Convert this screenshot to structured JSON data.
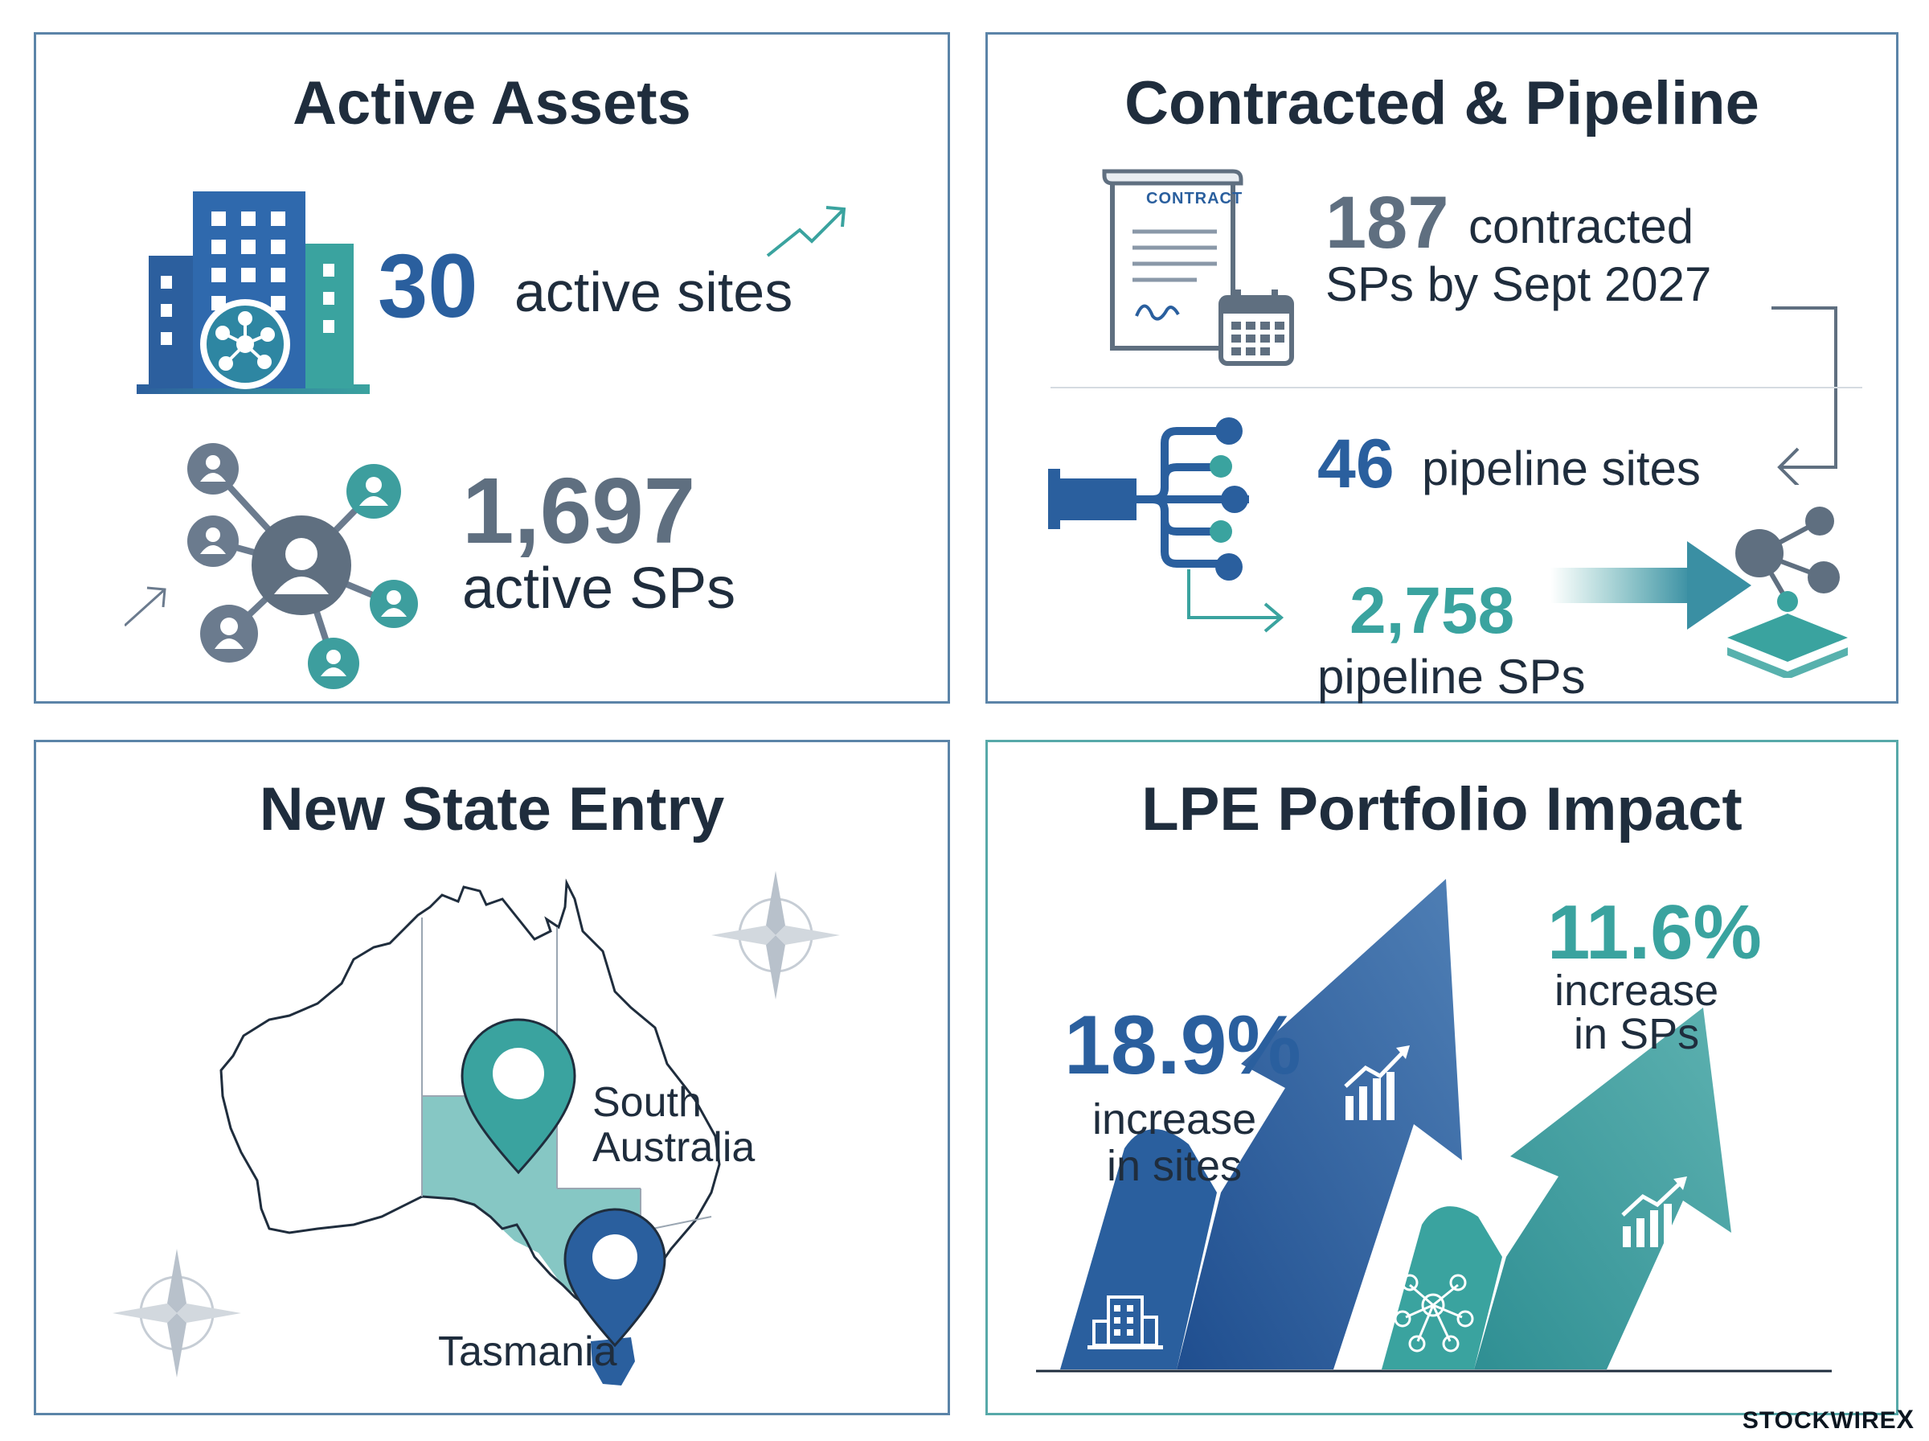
{
  "colors": {
    "navy": "#1f2d3d",
    "blue": "#2a5f9e",
    "teal": "#3aa39f",
    "slate": "#5f6f80",
    "border": "#5b84a8"
  },
  "active_assets": {
    "title": "Active Assets",
    "sites_number": "30",
    "sites_label": "active sites",
    "sps_number": "1,697",
    "sps_label": "active SPs",
    "icons": [
      "office-building-icon",
      "network-hub-icon",
      "trend-arrow-icon",
      "people-network-icon"
    ]
  },
  "contracted": {
    "title": "Contracted & Pipeline",
    "contract_icon_label": "CONTRACT",
    "contracted_number": "187",
    "contracted_label": "contracted",
    "contracted_line2": "SPs by Sept 2027",
    "pipeline_sites_number": "46",
    "pipeline_sites_label": "pipeline sites",
    "pipeline_sps_number": "2,758",
    "pipeline_sps_label": "pipeline SPs",
    "icons": [
      "contract-document-icon",
      "calendar-icon",
      "pipeline-branch-icon",
      "network-stack-icon"
    ]
  },
  "state_entry": {
    "title": "New State Entry",
    "label_sa_line1": "South",
    "label_sa_line2": "Australia",
    "label_tas": "Tasmania",
    "icons": [
      "australia-map",
      "location-pin-icon",
      "compass-rose-icon"
    ]
  },
  "portfolio": {
    "title": "LPE Portfolio Impact",
    "sites_pct": "18.9%",
    "sites_line1": "increase",
    "sites_line2": "in sites",
    "sps_pct": "11.6%",
    "sps_line1": "increase",
    "sps_line2": "in SPs",
    "icons": [
      "growth-arrow-icon",
      "bar-chart-icon",
      "building-icon",
      "people-network-icon"
    ]
  },
  "brand": {
    "name": "STOCKWIRE",
    "mark": "X"
  }
}
